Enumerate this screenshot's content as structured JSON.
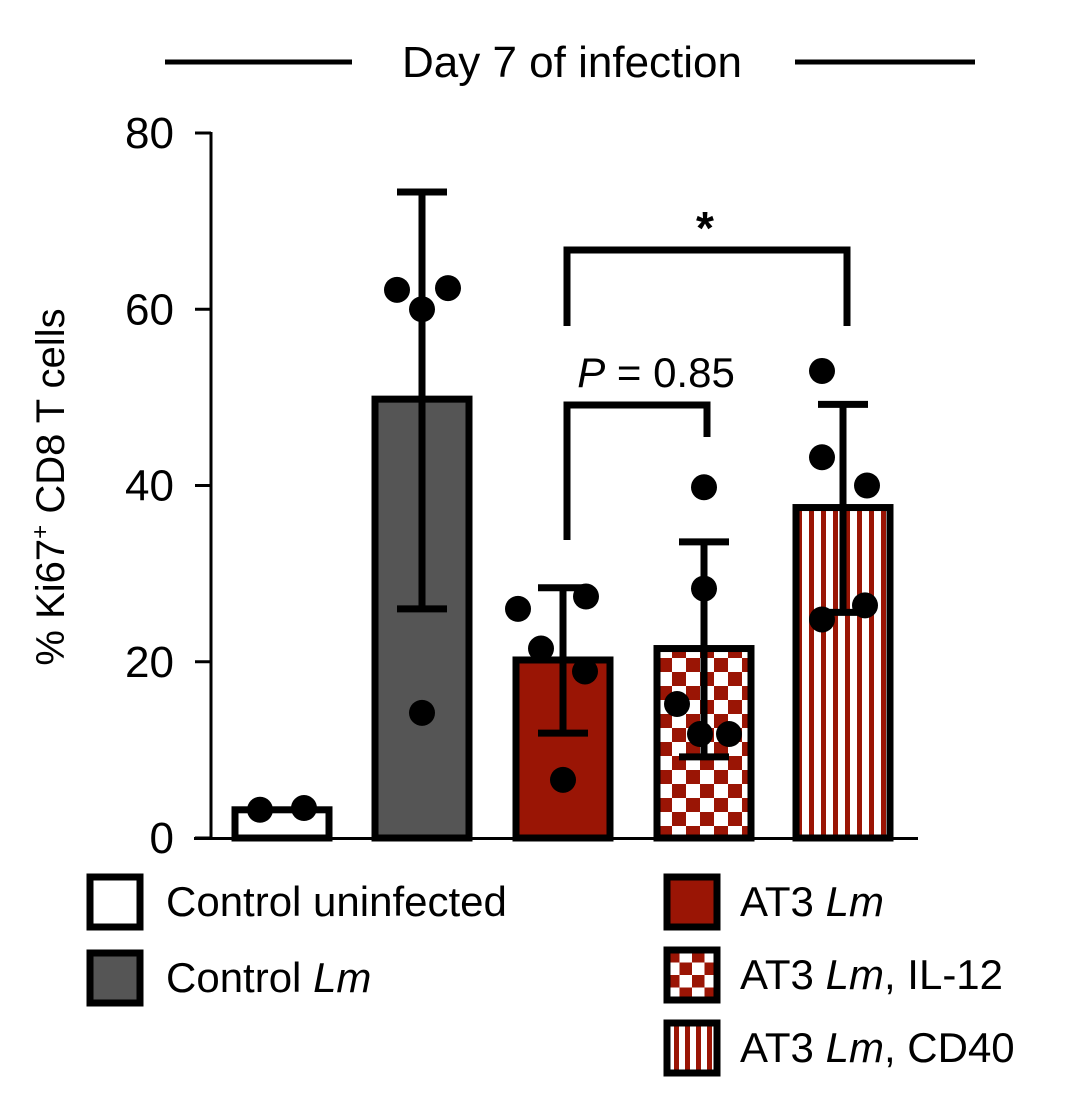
{
  "chart_data": {
    "type": "bar",
    "title": "Day 7 of infection",
    "ylabel_prefix": "% Ki67",
    "ylabel_sup": "+",
    "ylabel_suffix": " CD8 T cells",
    "ylim": [
      0,
      80
    ],
    "yticks": [
      0,
      20,
      40,
      60,
      80
    ],
    "ytick_labels": [
      "0",
      "20",
      "40",
      "60",
      "80"
    ],
    "categories": [
      "Control uninfected",
      "Control Lm",
      "AT3 Lm",
      "AT3 Lm, IL-12",
      "AT3 Lm, CD40"
    ],
    "values": [
      3.2,
      49.8,
      20.2,
      21.5,
      37.5
    ],
    "error": [
      [
        null,
        null
      ],
      [
        26.0,
        73.3
      ],
      [
        11.9,
        28.4
      ],
      [
        9.2,
        33.6
      ],
      [
        25.6,
        49.2
      ]
    ],
    "points": [
      [
        3.2,
        3.4
      ],
      [
        62.2,
        60.0,
        62.4,
        14.2
      ],
      [
        26.0,
        21.5,
        27.4,
        18.9,
        6.6
      ],
      [
        15.2,
        28.3,
        39.8,
        11.8,
        11.8
      ],
      [
        53.0,
        43.2,
        40.0,
        26.4,
        24.8
      ]
    ],
    "colors": {
      "control_uninfected": "#ffffff",
      "control_lm": "#555555",
      "at3_red": "#9a1505",
      "stroke": "#000000"
    },
    "annotations": {
      "pvalue_letter": "P",
      "pvalue_text": " = 0.85",
      "significance": "*"
    },
    "legend": {
      "left": [
        {
          "plain": "Control uninfected",
          "italic": "",
          "rest": ""
        },
        {
          "plain": "Control ",
          "italic": "Lm",
          "rest": ""
        }
      ],
      "right": [
        {
          "plain": "AT3 ",
          "italic": "Lm",
          "rest": ""
        },
        {
          "plain": "AT3 ",
          "italic": "Lm",
          "rest": ", IL-12"
        },
        {
          "plain": "AT3 ",
          "italic": "Lm",
          "rest": ", CD40"
        }
      ]
    }
  }
}
